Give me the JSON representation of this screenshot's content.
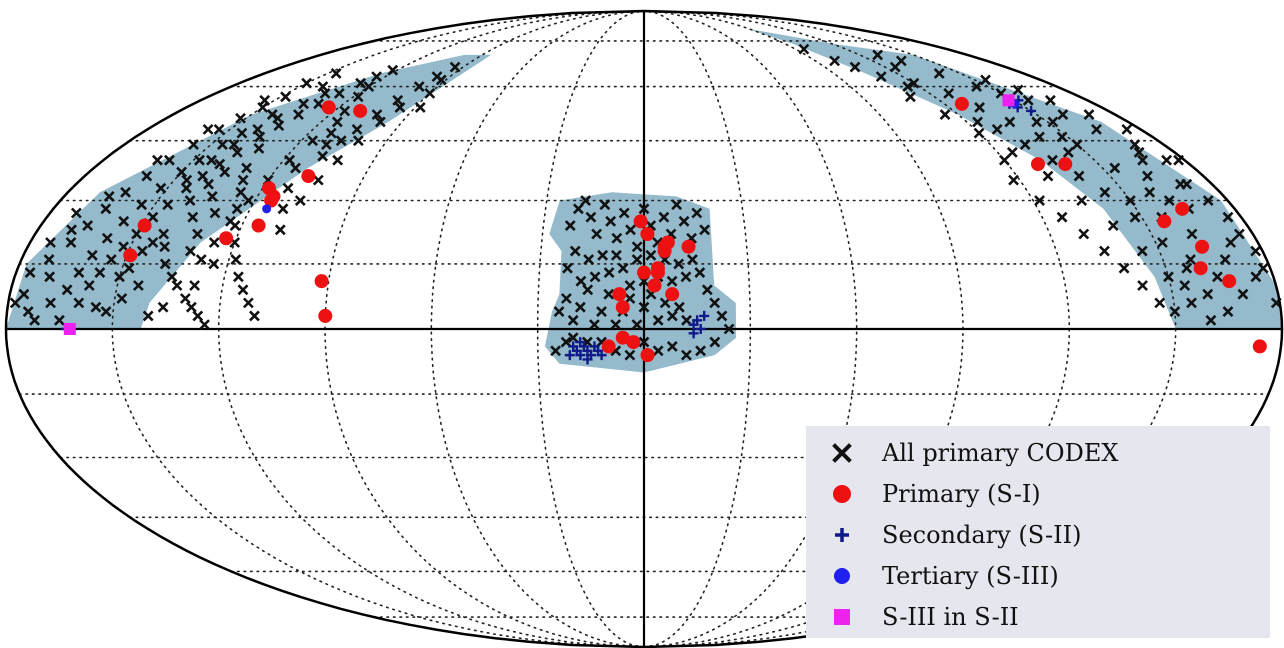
{
  "chart_data": {
    "type": "scatter",
    "projection": "mollweide",
    "grid": true,
    "grid_style": "dotted",
    "footprint_color": "#94bacb",
    "colors": {
      "all_primary": "#111111",
      "primary": "#ee1111",
      "secondary": "#101a88",
      "tertiary": "#1f1fee",
      "s3_in_s2": "#ee22ee"
    },
    "legend": {
      "placement": "bottom-right",
      "entries": [
        {
          "key": "all_primary",
          "label": "All primary CODEX",
          "marker": "x"
        },
        {
          "key": "primary",
          "label": "Primary (S-I)",
          "marker": "circle"
        },
        {
          "key": "secondary",
          "label": "Secondary (S-II)",
          "marker": "plus"
        },
        {
          "key": "tertiary",
          "label": "Tertiary (S-III)",
          "marker": "dot"
        },
        {
          "key": "s3_in_s2",
          "label": "S-III in S-II",
          "marker": "square"
        }
      ]
    },
    "series": [
      {
        "key": "primary",
        "points": [
          [
            -149,
            17
          ],
          [
            -149,
            24
          ],
          [
            -124,
            54
          ],
          [
            -123,
            21
          ],
          [
            -118,
            33
          ],
          [
            -115,
            31
          ],
          [
            -115,
            30
          ],
          [
            -115,
            24
          ],
          [
            -110,
            53
          ],
          [
            -108,
            36
          ],
          [
            -92,
            11
          ],
          [
            -90,
            3
          ],
          [
            -1,
            25
          ],
          [
            1,
            22
          ],
          [
            6,
            19
          ],
          [
            -6,
            5
          ],
          [
            3,
            10
          ],
          [
            4,
            13
          ],
          [
            6,
            18
          ],
          [
            7,
            20
          ],
          [
            0,
            13
          ],
          [
            4,
            14
          ],
          [
            13,
            19
          ],
          [
            8,
            8
          ],
          [
            -7,
            8
          ],
          [
            -10,
            -4
          ],
          [
            -6,
            -2
          ],
          [
            -3,
            -3
          ],
          [
            1,
            -6
          ],
          [
            127,
            55
          ],
          [
            130,
            39
          ],
          [
            139,
            39
          ],
          [
            156,
            25
          ],
          [
            160,
            14
          ],
          [
            163,
            19
          ],
          [
            164,
            28
          ],
          [
            167,
            11
          ],
          [
            174,
            -4
          ]
        ]
      },
      {
        "key": "tertiary",
        "points": [
          [
            -115,
            28
          ],
          [
            148,
            55
          ]
        ]
      },
      {
        "key": "s3_in_s2",
        "points": [
          [
            -162,
            0
          ],
          [
            148,
            56
          ]
        ]
      },
      {
        "key": "secondary",
        "points": [
          [
            -20,
            -4
          ],
          [
            -19,
            -5
          ],
          [
            -18,
            -6
          ],
          [
            -17,
            -4
          ],
          [
            -16,
            -5
          ],
          [
            -15,
            -6
          ],
          [
            -14,
            -4
          ],
          [
            -13,
            -5
          ],
          [
            -21,
            -6
          ],
          [
            -18,
            -3
          ],
          [
            -16,
            -7
          ],
          [
            -12,
            -6
          ],
          [
            14,
            1
          ],
          [
            15,
            2
          ],
          [
            16,
            0
          ],
          [
            14,
            -1
          ],
          [
            17,
            3
          ],
          [
            -163,
            0
          ],
          [
            146,
            55
          ],
          [
            147,
            54
          ],
          [
            150,
            53
          ],
          [
            152,
            56
          ]
        ]
      }
    ],
    "footprints": [
      [
        [
          -180,
          0
        ],
        [
          -178,
          15
        ],
        [
          -170,
          32
        ],
        [
          -150,
          52
        ],
        [
          -125,
          64
        ],
        [
          -100,
          70
        ],
        [
          -85,
          70
        ],
        [
          -95,
          50
        ],
        [
          -110,
          38
        ],
        [
          -130,
          20
        ],
        [
          -140,
          6
        ],
        [
          -142,
          0
        ]
      ],
      [
        [
          -28,
          22
        ],
        [
          -26,
          30
        ],
        [
          -10,
          32
        ],
        [
          10,
          31
        ],
        [
          20,
          28
        ],
        [
          20,
          10
        ],
        [
          26,
          6
        ],
        [
          26,
          -2
        ],
        [
          20,
          -6
        ],
        [
          0,
          -10
        ],
        [
          -24,
          -8
        ],
        [
          -28,
          -4
        ],
        [
          -26,
          4
        ],
        [
          -24,
          8
        ],
        [
          -24,
          18
        ]
      ],
      [
        [
          88,
          80
        ],
        [
          120,
          74
        ],
        [
          150,
          70
        ],
        [
          170,
          50
        ],
        [
          178,
          30
        ],
        [
          180,
          10
        ],
        [
          180,
          0
        ],
        [
          150,
          0
        ],
        [
          146,
          12
        ],
        [
          140,
          28
        ],
        [
          132,
          40
        ],
        [
          120,
          52
        ],
        [
          105,
          64
        ],
        [
          95,
          74
        ]
      ]
    ],
    "cross_points": [
      [
        -165,
        2
      ],
      [
        -155,
        5
      ],
      [
        -150,
        12
      ],
      [
        -148,
        14
      ],
      [
        -146,
        18
      ],
      [
        -144,
        20
      ],
      [
        -142,
        22
      ],
      [
        -140,
        19
      ],
      [
        -138,
        15
      ],
      [
        -135,
        12
      ],
      [
        -133,
        10
      ],
      [
        -130,
        7
      ],
      [
        -128,
        5
      ],
      [
        -126,
        3
      ],
      [
        -124,
        1
      ],
      [
        -160,
        6
      ],
      [
        -158,
        10
      ],
      [
        -156,
        13
      ],
      [
        -154,
        16
      ],
      [
        -152,
        19
      ],
      [
        -150,
        22
      ],
      [
        -148,
        26
      ],
      [
        -146,
        29
      ],
      [
        -144,
        33
      ],
      [
        -142,
        36
      ],
      [
        -140,
        39
      ],
      [
        -138,
        42
      ],
      [
        -136,
        46
      ],
      [
        -134,
        49
      ],
      [
        -132,
        52
      ],
      [
        -130,
        55
      ],
      [
        -128,
        58
      ],
      [
        -126,
        61
      ],
      [
        -124,
        63
      ],
      [
        -122,
        65
      ],
      [
        -120,
        60
      ],
      [
        -118,
        57
      ],
      [
        -116,
        53
      ],
      [
        -114,
        50
      ],
      [
        -112,
        47
      ],
      [
        -110,
        44
      ],
      [
        -108,
        41
      ],
      [
        -106,
        45
      ],
      [
        -104,
        48
      ],
      [
        -102,
        52
      ],
      [
        -100,
        56
      ],
      [
        -98,
        60
      ],
      [
        -96,
        63
      ],
      [
        -94,
        66
      ],
      [
        -92,
        62
      ],
      [
        -90,
        58
      ],
      [
        -88,
        54
      ],
      [
        -170,
        12
      ],
      [
        -172,
        16
      ],
      [
        -168,
        20
      ],
      [
        -166,
        24
      ],
      [
        -164,
        28
      ],
      [
        -162,
        32
      ],
      [
        -160,
        36
      ],
      [
        -158,
        40
      ],
      [
        -156,
        44
      ],
      [
        -154,
        48
      ],
      [
        -152,
        51
      ],
      [
        -150,
        54
      ],
      [
        -148,
        57
      ],
      [
        -146,
        44
      ],
      [
        -144,
        47
      ],
      [
        -142,
        52
      ],
      [
        -140,
        30
      ],
      [
        -138,
        34
      ],
      [
        -136,
        26
      ],
      [
        -134,
        31
      ],
      [
        -132,
        22
      ],
      [
        -130,
        27
      ],
      [
        -128,
        16
      ],
      [
        -126,
        20
      ],
      [
        -124,
        25
      ],
      [
        -122,
        30
      ],
      [
        -120,
        35
      ],
      [
        -118,
        40
      ],
      [
        -116,
        45
      ],
      [
        -114,
        38
      ],
      [
        -112,
        33
      ],
      [
        -110,
        28
      ],
      [
        -108,
        23
      ],
      [
        -106,
        30
      ],
      [
        -104,
        35
      ],
      [
        -102,
        40
      ],
      [
        -100,
        45
      ],
      [
        -98,
        50
      ],
      [
        -96,
        54
      ],
      [
        -174,
        4
      ],
      [
        -176,
        8
      ],
      [
        -172,
        2
      ],
      [
        -168,
        6
      ],
      [
        -164,
        9
      ],
      [
        -162,
        13
      ],
      [
        -160,
        17
      ],
      [
        -158,
        21
      ],
      [
        -156,
        25
      ],
      [
        -154,
        29
      ],
      [
        -152,
        33
      ],
      [
        -150,
        37
      ],
      [
        -148,
        40
      ],
      [
        -146,
        35
      ],
      [
        -144,
        40
      ],
      [
        -142,
        44
      ],
      [
        -140,
        48
      ],
      [
        -138,
        51
      ],
      [
        -136,
        55
      ],
      [
        -134,
        58
      ],
      [
        -132,
        43
      ],
      [
        -130,
        38
      ],
      [
        -128,
        35
      ],
      [
        -126,
        32
      ],
      [
        -124,
        28
      ],
      [
        -122,
        24
      ],
      [
        -120,
        20
      ],
      [
        -118,
        16
      ],
      [
        -116,
        12
      ],
      [
        -114,
        9
      ],
      [
        -112,
        6
      ],
      [
        -110,
        3
      ],
      [
        -170,
        23
      ],
      [
        -166,
        31
      ],
      [
        -162,
        40
      ],
      [
        -158,
        48
      ],
      [
        -154,
        56
      ],
      [
        -150,
        61
      ],
      [
        -146,
        64
      ],
      [
        -140,
        60
      ],
      [
        -136,
        37
      ],
      [
        -132,
        18
      ],
      [
        -128,
        10
      ],
      [
        -124,
        15
      ],
      [
        -152,
        4
      ],
      [
        -148,
        7
      ],
      [
        -144,
        10
      ],
      [
        -140,
        3
      ],
      [
        -136,
        5
      ],
      [
        -178,
        6
      ],
      [
        -176,
        13
      ],
      [
        -174,
        20
      ],
      [
        -172,
        27
      ],
      [
        -22,
        24
      ],
      [
        -20,
        28
      ],
      [
        -18,
        30
      ],
      [
        -16,
        26
      ],
      [
        -14,
        22
      ],
      [
        -12,
        29
      ],
      [
        -10,
        25
      ],
      [
        -8,
        21
      ],
      [
        -6,
        27
      ],
      [
        -4,
        23
      ],
      [
        -2,
        19
      ],
      [
        0,
        28
      ],
      [
        2,
        24
      ],
      [
        4,
        20
      ],
      [
        6,
        26
      ],
      [
        8,
        22
      ],
      [
        10,
        29
      ],
      [
        12,
        25
      ],
      [
        14,
        21
      ],
      [
        16,
        27
      ],
      [
        18,
        23
      ],
      [
        -22,
        14
      ],
      [
        -20,
        18
      ],
      [
        -18,
        11
      ],
      [
        -16,
        16
      ],
      [
        -14,
        12
      ],
      [
        -12,
        17
      ],
      [
        -10,
        13
      ],
      [
        -8,
        17
      ],
      [
        -6,
        14
      ],
      [
        -4,
        10
      ],
      [
        -2,
        16
      ],
      [
        0,
        11
      ],
      [
        2,
        17
      ],
      [
        4,
        12
      ],
      [
        6,
        16
      ],
      [
        8,
        11
      ],
      [
        10,
        15
      ],
      [
        12,
        12
      ],
      [
        14,
        16
      ],
      [
        16,
        13
      ],
      [
        18,
        9
      ],
      [
        20,
        6
      ],
      [
        22,
        3
      ],
      [
        24,
        0
      ],
      [
        -24,
        4
      ],
      [
        -22,
        7
      ],
      [
        -20,
        2
      ],
      [
        -18,
        5
      ],
      [
        -16,
        9
      ],
      [
        -14,
        1
      ],
      [
        -12,
        4
      ],
      [
        -10,
        8
      ],
      [
        -8,
        1
      ],
      [
        -6,
        4
      ],
      [
        -4,
        7
      ],
      [
        -2,
        1
      ],
      [
        0,
        5
      ],
      [
        2,
        8
      ],
      [
        4,
        2
      ],
      [
        6,
        6
      ],
      [
        8,
        3
      ],
      [
        10,
        5
      ],
      [
        12,
        2
      ],
      [
        -22,
        -3
      ],
      [
        -20,
        -2
      ],
      [
        -16,
        -3
      ],
      [
        -12,
        -3
      ],
      [
        -8,
        -5
      ],
      [
        -4,
        -6
      ],
      [
        0,
        -3
      ],
      [
        4,
        -5
      ],
      [
        8,
        -4
      ],
      [
        12,
        -6
      ],
      [
        16,
        -5
      ],
      [
        20,
        -3
      ],
      [
        -25,
        -5
      ],
      [
        95,
        72
      ],
      [
        100,
        68
      ],
      [
        105,
        66
      ],
      [
        110,
        63
      ],
      [
        115,
        60
      ],
      [
        120,
        61
      ],
      [
        125,
        66
      ],
      [
        130,
        70
      ],
      [
        135,
        68
      ],
      [
        140,
        64
      ],
      [
        145,
        60
      ],
      [
        150,
        58
      ],
      [
        155,
        62
      ],
      [
        160,
        59
      ],
      [
        165,
        56
      ],
      [
        170,
        52
      ],
      [
        175,
        48
      ],
      [
        178,
        40
      ],
      [
        110,
        57
      ],
      [
        115,
        52
      ],
      [
        120,
        47
      ],
      [
        125,
        42
      ],
      [
        130,
        36
      ],
      [
        135,
        30
      ],
      [
        140,
        24
      ],
      [
        145,
        18
      ],
      [
        150,
        12
      ],
      [
        155,
        6
      ],
      [
        160,
        2
      ],
      [
        165,
        4
      ],
      [
        170,
        8
      ],
      [
        175,
        12
      ],
      [
        178,
        18
      ],
      [
        176,
        26
      ],
      [
        172,
        34
      ],
      [
        168,
        42
      ],
      [
        164,
        48
      ],
      [
        160,
        52
      ],
      [
        156,
        56
      ],
      [
        152,
        50
      ],
      [
        148,
        46
      ],
      [
        144,
        42
      ],
      [
        140,
        46
      ],
      [
        136,
        50
      ],
      [
        132,
        54
      ],
      [
        128,
        58
      ],
      [
        124,
        50
      ],
      [
        120,
        40
      ],
      [
        118,
        35
      ],
      [
        122,
        30
      ],
      [
        126,
        26
      ],
      [
        130,
        22
      ],
      [
        134,
        18
      ],
      [
        138,
        14
      ],
      [
        142,
        10
      ],
      [
        146,
        6
      ],
      [
        150,
        4
      ],
      [
        154,
        10
      ],
      [
        158,
        16
      ],
      [
        162,
        22
      ],
      [
        166,
        28
      ],
      [
        170,
        34
      ],
      [
        174,
        30
      ],
      [
        176,
        22
      ],
      [
        178,
        14
      ],
      [
        179,
        6
      ],
      [
        172,
        20
      ],
      [
        168,
        16
      ],
      [
        164,
        12
      ],
      [
        160,
        8
      ],
      [
        156,
        14
      ],
      [
        152,
        20
      ],
      [
        148,
        26
      ],
      [
        144,
        32
      ],
      [
        140,
        36
      ],
      [
        136,
        40
      ],
      [
        132,
        44
      ],
      [
        128,
        48
      ],
      [
        146,
        50
      ],
      [
        150,
        44
      ],
      [
        154,
        38
      ],
      [
        158,
        32
      ],
      [
        162,
        36
      ],
      [
        166,
        40
      ],
      [
        170,
        44
      ],
      [
        174,
        40
      ],
      [
        150,
        30
      ],
      [
        156,
        26
      ],
      [
        162,
        30
      ]
    ]
  }
}
